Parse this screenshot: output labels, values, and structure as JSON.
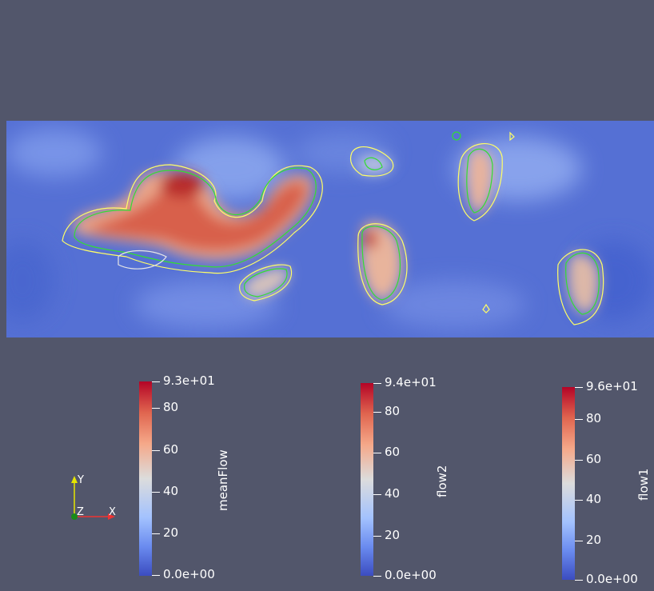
{
  "view": {
    "background": "#52566b",
    "colormap": "Cool to Warm",
    "contour_colors": [
      "#ffff66",
      "#33dd33",
      "#e6e6e6"
    ]
  },
  "color_bars": [
    {
      "title": "meanFlow",
      "max_label": "9.3e+01",
      "min_label": "0.0e+00",
      "ticks": [
        "80",
        "60",
        "40",
        "20"
      ]
    },
    {
      "title": "flow2",
      "max_label": "9.4e+01",
      "min_label": "0.0e+00",
      "ticks": [
        "80",
        "60",
        "40",
        "20"
      ]
    },
    {
      "title": "flow1",
      "max_label": "9.6e+01",
      "min_label": "0.0e+00",
      "ticks": [
        "80",
        "60",
        "40",
        "20"
      ]
    }
  ],
  "orientation_axes": {
    "x": "X",
    "y": "Y",
    "z": "Z"
  }
}
